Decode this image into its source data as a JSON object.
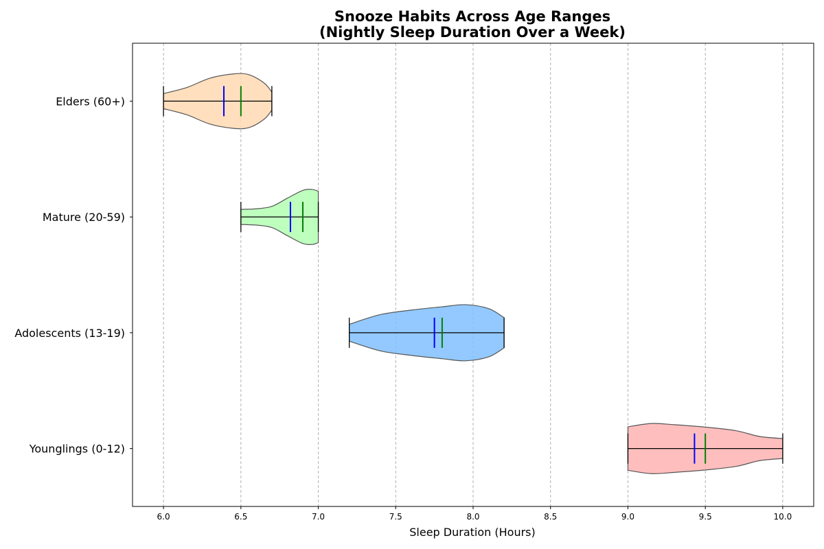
{
  "chart_data": {
    "type": "violin",
    "orientation": "horizontal",
    "title_line1": "Snooze Habits Across Age Ranges",
    "title_line2": "(Nightly Sleep Duration Over a Week)",
    "xlabel": "Sleep Duration (Hours)",
    "ylabel": "",
    "xlim": [
      5.8,
      10.2
    ],
    "xticks": [
      "6.0",
      "6.5",
      "7.0",
      "7.5",
      "8.0",
      "8.5",
      "9.0",
      "9.5",
      "10.0"
    ],
    "grid": "x-dashed",
    "mean_color": "#0000ff",
    "median_color": "#008000",
    "groups": [
      {
        "name": "Younglings (0-12)",
        "color": "#ffb3b3",
        "min": 9.0,
        "max": 10.0,
        "mean": 9.43,
        "median": 9.5,
        "density": [
          [
            9.0,
            0.72
          ],
          [
            9.15,
            0.83
          ],
          [
            9.3,
            0.79
          ],
          [
            9.5,
            0.71
          ],
          [
            9.7,
            0.59
          ],
          [
            9.85,
            0.4
          ],
          [
            10.0,
            0.33
          ]
        ]
      },
      {
        "name": "Adolescents (13-19)",
        "color": "#80bfff",
        "min": 7.2,
        "max": 8.2,
        "mean": 7.75,
        "median": 7.8,
        "density": [
          [
            7.2,
            0.28
          ],
          [
            7.4,
            0.6
          ],
          [
            7.6,
            0.75
          ],
          [
            7.8,
            0.86
          ],
          [
            7.95,
            0.93
          ],
          [
            8.1,
            0.8
          ],
          [
            8.2,
            0.5
          ]
        ]
      },
      {
        "name": "Mature (20-59)",
        "color": "#b3ffb3",
        "min": 6.5,
        "max": 7.0,
        "mean": 6.82,
        "median": 6.9,
        "density": [
          [
            6.5,
            0.25
          ],
          [
            6.6,
            0.27
          ],
          [
            6.7,
            0.35
          ],
          [
            6.8,
            0.62
          ],
          [
            6.9,
            0.88
          ],
          [
            6.96,
            0.91
          ],
          [
            7.0,
            0.85
          ]
        ]
      },
      {
        "name": "Elders (60+)",
        "color": "#ffd9b3",
        "min": 6.0,
        "max": 6.7,
        "mean": 6.39,
        "median": 6.5,
        "density": [
          [
            6.0,
            0.25
          ],
          [
            6.15,
            0.45
          ],
          [
            6.3,
            0.76
          ],
          [
            6.45,
            0.9
          ],
          [
            6.55,
            0.88
          ],
          [
            6.65,
            0.6
          ],
          [
            6.7,
            0.3
          ]
        ]
      }
    ]
  }
}
